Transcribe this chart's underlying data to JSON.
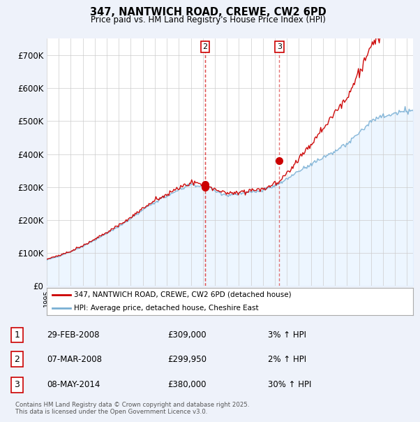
{
  "title": "347, NANTWICH ROAD, CREWE, CW2 6PD",
  "subtitle": "Price paid vs. HM Land Registry's House Price Index (HPI)",
  "hpi_label": "HPI: Average price, detached house, Cheshire East",
  "property_label": "347, NANTWICH ROAD, CREWE, CW2 6PD (detached house)",
  "footnote": "Contains HM Land Registry data © Crown copyright and database right 2025.\nThis data is licensed under the Open Government Licence v3.0.",
  "transactions": [
    {
      "num": 1,
      "date": "29-FEB-2008",
      "price": 309000,
      "hpi_pct": "3%",
      "direction": "↑"
    },
    {
      "num": 2,
      "date": "07-MAR-2008",
      "price": 299950,
      "hpi_pct": "2%",
      "direction": "↑"
    },
    {
      "num": 3,
      "date": "08-MAY-2014",
      "price": 380000,
      "hpi_pct": "30%",
      "direction": "↑"
    }
  ],
  "sale_dates_decimal": [
    2008.16,
    2008.19,
    2014.37
  ],
  "sale_prices": [
    309000,
    299950,
    380000
  ],
  "vline_dates": [
    2008.16,
    2008.19,
    2014.37
  ],
  "vline_show_label": [
    false,
    true,
    true
  ],
  "vline_labels": [
    "1",
    "2",
    "3"
  ],
  "property_color": "#cc0000",
  "hpi_color": "#7ab0d4",
  "hpi_fill_color": "#ddeeff",
  "background_color": "#eef2fa",
  "plot_bg": "#ffffff",
  "ylim": [
    0,
    750000
  ],
  "xlim_start": 1995.0,
  "xlim_end": 2025.5,
  "yticks": [
    0,
    100000,
    200000,
    300000,
    400000,
    500000,
    600000,
    700000
  ],
  "ylabels": [
    "£0",
    "£100K",
    "£200K",
    "£300K",
    "£400K",
    "£500K",
    "£600K",
    "£700K"
  ]
}
